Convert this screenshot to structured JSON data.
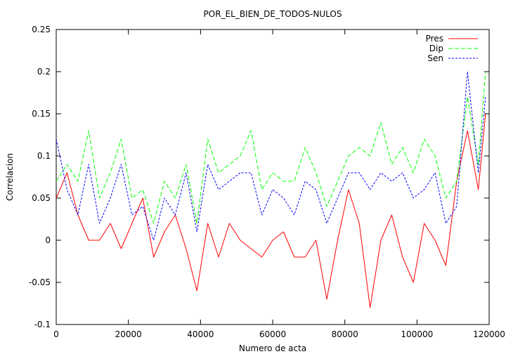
{
  "chart_data": {
    "type": "line",
    "title": "POR_EL_BIEN_DE_TODOS-NULOS",
    "xlabel": "Numero de acta",
    "ylabel": "Correlacion",
    "xlim": [
      0,
      120000
    ],
    "ylim": [
      -0.1,
      0.25
    ],
    "xticks": [
      0,
      20000,
      40000,
      60000,
      80000,
      100000,
      120000
    ],
    "yticks": [
      -0.1,
      -0.05,
      0,
      0.05,
      0.1,
      0.15,
      0.2,
      0.25
    ],
    "ytick_labels": [
      "-0.1",
      "-0.05",
      "0",
      "0.05",
      "0.1",
      "0.15",
      "0.2",
      "0.25"
    ],
    "grid": false,
    "legend_position": "top-right",
    "series": [
      {
        "name": "Pres",
        "color": "#ff0000",
        "dash": "solid",
        "x": [
          0,
          3000,
          6000,
          9000,
          12000,
          15000,
          18000,
          21000,
          24000,
          27000,
          30000,
          33000,
          36000,
          39000,
          42000,
          45000,
          48000,
          51000,
          54000,
          57000,
          60000,
          63000,
          66000,
          69000,
          72000,
          75000,
          78000,
          81000,
          84000,
          87000,
          90000,
          93000,
          96000,
          99000,
          102000,
          105000,
          108000,
          111000,
          114000,
          117000,
          119000
        ],
        "values": [
          0.05,
          0.08,
          0.03,
          0.0,
          0.0,
          0.02,
          -0.01,
          0.02,
          0.05,
          -0.02,
          0.01,
          0.03,
          -0.01,
          -0.06,
          0.02,
          -0.02,
          0.02,
          0.0,
          -0.01,
          -0.02,
          0.0,
          0.01,
          -0.02,
          -0.02,
          0.0,
          -0.07,
          0.0,
          0.06,
          0.02,
          -0.08,
          0.0,
          0.03,
          -0.02,
          -0.05,
          0.02,
          0.0,
          -0.03,
          0.07,
          0.13,
          0.06,
          0.15
        ]
      },
      {
        "name": "Dip",
        "color": "#00ff00",
        "dash": "6,3",
        "x": [
          0,
          3000,
          6000,
          9000,
          12000,
          15000,
          18000,
          21000,
          24000,
          27000,
          30000,
          33000,
          36000,
          39000,
          42000,
          45000,
          48000,
          51000,
          54000,
          57000,
          60000,
          63000,
          66000,
          69000,
          72000,
          75000,
          78000,
          81000,
          84000,
          87000,
          90000,
          93000,
          96000,
          99000,
          102000,
          105000,
          108000,
          111000,
          114000,
          117000,
          119000
        ],
        "values": [
          0.07,
          0.09,
          0.07,
          0.13,
          0.05,
          0.08,
          0.12,
          0.05,
          0.06,
          0.02,
          0.07,
          0.05,
          0.09,
          0.02,
          0.12,
          0.08,
          0.09,
          0.1,
          0.13,
          0.06,
          0.08,
          0.07,
          0.07,
          0.11,
          0.08,
          0.04,
          0.07,
          0.1,
          0.11,
          0.1,
          0.14,
          0.09,
          0.11,
          0.08,
          0.12,
          0.1,
          0.05,
          0.07,
          0.17,
          0.09,
          0.2
        ]
      },
      {
        "name": "Sen",
        "color": "#0000ff",
        "dash": "3,2",
        "x": [
          0,
          3000,
          6000,
          9000,
          12000,
          15000,
          18000,
          21000,
          24000,
          27000,
          30000,
          33000,
          36000,
          39000,
          42000,
          45000,
          48000,
          51000,
          54000,
          57000,
          60000,
          63000,
          66000,
          69000,
          72000,
          75000,
          78000,
          81000,
          84000,
          87000,
          90000,
          93000,
          96000,
          99000,
          102000,
          105000,
          108000,
          111000,
          114000,
          117000,
          119000
        ],
        "values": [
          0.12,
          0.06,
          0.03,
          0.09,
          0.02,
          0.05,
          0.09,
          0.03,
          0.04,
          0.0,
          0.05,
          0.03,
          0.08,
          0.01,
          0.09,
          0.06,
          0.07,
          0.08,
          0.08,
          0.03,
          0.06,
          0.05,
          0.03,
          0.07,
          0.06,
          0.02,
          0.05,
          0.08,
          0.08,
          0.06,
          0.08,
          0.07,
          0.08,
          0.05,
          0.06,
          0.08,
          0.02,
          0.04,
          0.2,
          0.08,
          0.17
        ]
      }
    ]
  }
}
